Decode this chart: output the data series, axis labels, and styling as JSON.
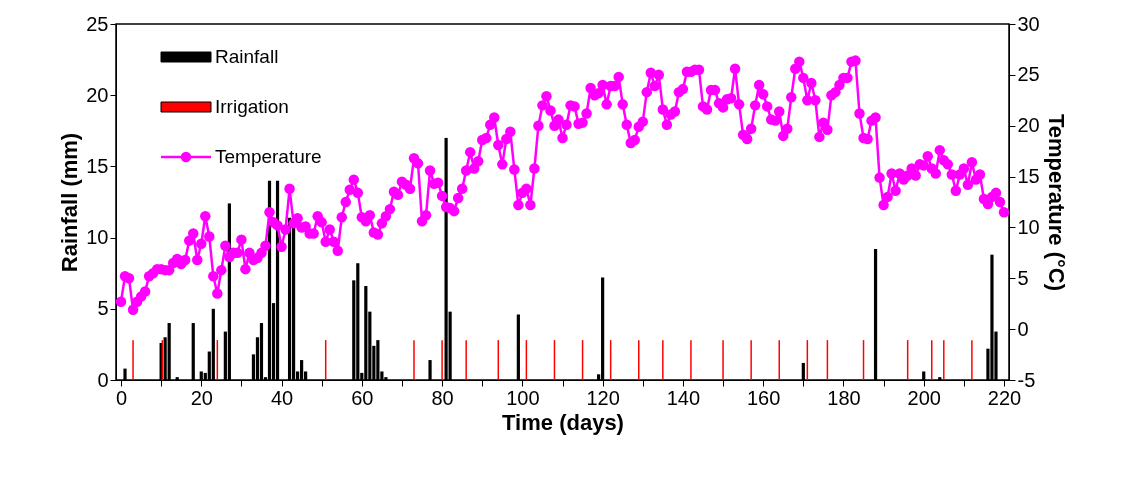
{
  "chart_data": {
    "type": "bar",
    "xlabel": "Time (days)",
    "ylabel": "Rainfall (mm)",
    "y2label": "Temperature (°C)",
    "xlim": [
      0,
      220
    ],
    "xticks": [
      0,
      {
        "value": 10,
        "label": null
      },
      20,
      {
        "value": 30,
        "label": null
      },
      40,
      {
        "value": 50,
        "label": null
      },
      60,
      {
        "value": 70,
        "label": null
      },
      80,
      {
        "value": 90,
        "label": null
      },
      100,
      {
        "value": 110,
        "label": null
      },
      120,
      {
        "value": 130,
        "label": null
      },
      140,
      {
        "value": 150,
        "label": null
      },
      160,
      {
        "value": 170,
        "label": null
      },
      180,
      {
        "value": 190,
        "label": null
      },
      200,
      {
        "value": 210,
        "label": null
      },
      220
    ],
    "ylim": [
      0,
      25
    ],
    "yticks": [
      0,
      5,
      10,
      15,
      20,
      25
    ],
    "y2lim": [
      -5,
      30
    ],
    "y2ticks": [
      -5,
      0,
      5,
      10,
      15,
      20,
      25,
      30
    ],
    "grid": false,
    "legend": "top left",
    "series": [
      {
        "name": "Rainfall",
        "color": "#000000",
        "x": [
          1,
          10,
          11,
          12,
          14,
          18,
          20,
          21,
          22,
          23,
          26,
          27,
          33,
          34,
          35,
          36,
          37,
          38,
          39,
          42,
          43,
          44,
          45,
          46,
          58,
          59,
          60,
          61,
          62,
          63,
          64,
          65,
          66,
          77,
          81,
          82,
          99,
          119,
          120,
          170,
          188,
          200,
          204,
          216,
          217,
          218
        ],
        "values": [
          0.8,
          2.6,
          3.0,
          4.0,
          0.2,
          4.0,
          0.6,
          0.5,
          2.0,
          5.0,
          3.4,
          12.4,
          1.8,
          3.0,
          4.0,
          0.2,
          14.0,
          5.4,
          14.0,
          11.4,
          10.8,
          0.6,
          1.4,
          0.6,
          7.0,
          8.2,
          0.5,
          6.6,
          4.8,
          2.4,
          2.8,
          0.6,
          0.2,
          1.4,
          17.0,
          4.8,
          4.6,
          0.4,
          7.2,
          1.2,
          9.2,
          0.6,
          0.2,
          2.2,
          8.8,
          3.4
        ]
      },
      {
        "name": "Irrigation",
        "color": "#ff0000",
        "x": [
          3,
          10.3,
          24,
          51,
          73,
          80,
          86,
          94,
          101,
          108,
          115,
          122,
          129,
          135,
          142,
          150,
          157,
          164,
          171,
          176,
          185,
          196,
          202,
          205,
          212
        ],
        "values": [
          2.8,
          2.8,
          2.8,
          2.8,
          2.8,
          2.8,
          2.8,
          2.8,
          2.8,
          2.8,
          2.8,
          2.8,
          2.8,
          2.8,
          2.8,
          2.8,
          2.8,
          2.8,
          2.8,
          2.8,
          2.8,
          2.8,
          2.8,
          2.8,
          2.8
        ]
      },
      {
        "name": "Temperature",
        "type": "line",
        "axis": "y2",
        "color": "#ff00ff",
        "marker": "circle",
        "line_style": "solid",
        "x": [
          0,
          1,
          2,
          3,
          4,
          5,
          6,
          7,
          8,
          9,
          10,
          11,
          12,
          13,
          14,
          15,
          16,
          17,
          18,
          19,
          20,
          21,
          22,
          23,
          24,
          25,
          26,
          27,
          28,
          29,
          30,
          31,
          32,
          33,
          34,
          35,
          36,
          37,
          38,
          39,
          40,
          41,
          42,
          43,
          44,
          45,
          46,
          47,
          48,
          49,
          50,
          51,
          52,
          53,
          54,
          55,
          56,
          57,
          58,
          59,
          60,
          61,
          62,
          63,
          64,
          65,
          66,
          67,
          68,
          69,
          70,
          71,
          72,
          73,
          74,
          75,
          76,
          77,
          78,
          79,
          80,
          81,
          82,
          83,
          84,
          85,
          86,
          87,
          88,
          89,
          90,
          91,
          92,
          93,
          94,
          95,
          96,
          97,
          98,
          99,
          100,
          101,
          102,
          103,
          104,
          105,
          106,
          107,
          108,
          109,
          110,
          111,
          112,
          113,
          114,
          115,
          116,
          117,
          118,
          119,
          120,
          121,
          122,
          123,
          124,
          125,
          126,
          127,
          128,
          129,
          130,
          131,
          132,
          133,
          134,
          135,
          136,
          137,
          138,
          139,
          140,
          141,
          142,
          143,
          144,
          145,
          146,
          147,
          148,
          149,
          150,
          151,
          152,
          153,
          154,
          155,
          156,
          157,
          158,
          159,
          160,
          161,
          162,
          163,
          164,
          165,
          166,
          167,
          168,
          169,
          170,
          171,
          172,
          173,
          174,
          175,
          176,
          177,
          178,
          179,
          180,
          181,
          182,
          183,
          184,
          185,
          186,
          187,
          188,
          189,
          190,
          191,
          192,
          193,
          194,
          195,
          196,
          197,
          198,
          199,
          200,
          201,
          202,
          203,
          204,
          205,
          206,
          207,
          208,
          209,
          210,
          211,
          212,
          213,
          214,
          215,
          216,
          217,
          218,
          219,
          220
        ],
        "values": [
          2.7,
          5.2,
          5.0,
          1.9,
          2.7,
          3.2,
          3.7,
          5.2,
          5.5,
          5.9,
          5.9,
          5.8,
          5.8,
          6.5,
          6.9,
          6.4,
          6.8,
          8.7,
          9.4,
          6.8,
          8.4,
          11.1,
          9.1,
          5.2,
          3.5,
          5.8,
          8.2,
          7.1,
          7.5,
          7.5,
          8.8,
          5.9,
          7.5,
          6.8,
          7.0,
          7.5,
          8.2,
          11.5,
          10.5,
          10.2,
          8.1,
          9.8,
          13.8,
          10.4,
          10.9,
          10.0,
          10.1,
          9.4,
          9.4,
          11.1,
          10.5,
          8.6,
          9.8,
          8.6,
          7.7,
          11.0,
          12.5,
          13.7,
          14.7,
          13.4,
          11.0,
          10.6,
          11.2,
          9.5,
          9.3,
          10.4,
          11.1,
          11.8,
          13.5,
          13.2,
          14.5,
          14.2,
          13.8,
          16.8,
          16.3,
          10.6,
          11.2,
          15.6,
          14.3,
          14.4,
          13.1,
          12.0,
          11.9,
          11.6,
          12.9,
          13.8,
          15.6,
          17.4,
          15.8,
          16.5,
          18.6,
          18.8,
          20.1,
          20.8,
          18.1,
          16.2,
          18.7,
          19.4,
          15.7,
          12.2,
          13.4,
          13.8,
          12.2,
          15.8,
          20.0,
          22.0,
          22.9,
          21.5,
          20.0,
          20.6,
          18.8,
          20.1,
          22.0,
          21.9,
          20.2,
          20.3,
          21.2,
          23.7,
          23.0,
          23.2,
          24.0,
          22.1,
          23.9,
          23.9,
          24.8,
          22.1,
          20.1,
          18.3,
          18.6,
          19.9,
          20.4,
          23.3,
          25.2,
          23.9,
          25.0,
          21.6,
          20.1,
          21.1,
          21.4,
          23.3,
          23.6,
          25.3,
          25.3,
          25.5,
          25.5,
          21.9,
          21.6,
          23.5,
          23.5,
          22.2,
          21.8,
          22.6,
          22.7,
          25.6,
          22.1,
          19.1,
          18.7,
          19.7,
          22.0,
          24.0,
          23.1,
          21.9,
          20.6,
          20.5,
          21.4,
          19.0,
          19.7,
          22.8,
          25.6,
          26.3,
          24.7,
          22.5,
          24.2,
          22.5,
          18.9,
          20.3,
          19.6,
          23.0,
          23.3,
          24.0,
          24.7,
          24.7,
          26.3,
          26.4,
          21.2,
          18.8,
          18.7,
          20.5,
          20.8,
          14.9,
          12.2,
          13.0,
          15.3,
          13.6,
          15.3,
          14.7,
          15.1,
          15.8,
          15.1,
          16.2,
          16.1,
          17.0,
          15.8,
          15.3,
          17.6,
          16.6,
          16.2,
          15.2,
          13.6,
          15.2,
          15.8,
          14.2,
          16.4,
          14.7,
          15.2,
          12.8,
          12.3,
          13.0,
          13.4,
          12.5,
          11.5
        ]
      }
    ]
  }
}
